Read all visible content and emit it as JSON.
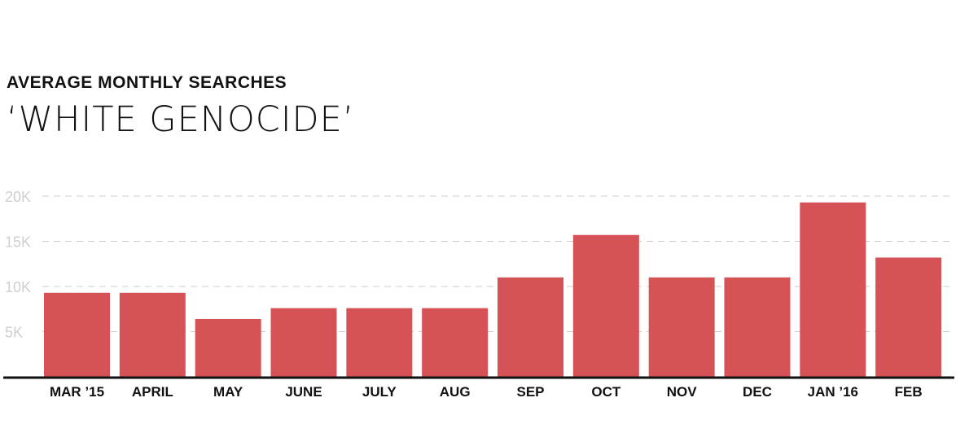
{
  "header": {
    "subtitle": "AVERAGE MONTHLY SEARCHES",
    "title": "‘WHITE GENOCIDE’"
  },
  "chart_data": {
    "type": "bar",
    "categories": [
      "MAR ’15",
      "APRIL",
      "MAY",
      "JUNE",
      "JULY",
      "AUG",
      "SEP",
      "OCT",
      "NOV",
      "DEC",
      "JAN ’16",
      "FEB"
    ],
    "values": [
      9300,
      9300,
      6400,
      7600,
      7600,
      7600,
      11000,
      15700,
      11000,
      11000,
      19300,
      13200
    ],
    "ylim": [
      0,
      20000
    ],
    "yticks": [
      5000,
      10000,
      15000,
      20000
    ],
    "ytick_labels": [
      "5K",
      "10K",
      "15K",
      "20K"
    ],
    "grid": true,
    "colors": {
      "bar": "#d55257",
      "grid": "#cccccc",
      "axis": "#111111"
    }
  }
}
